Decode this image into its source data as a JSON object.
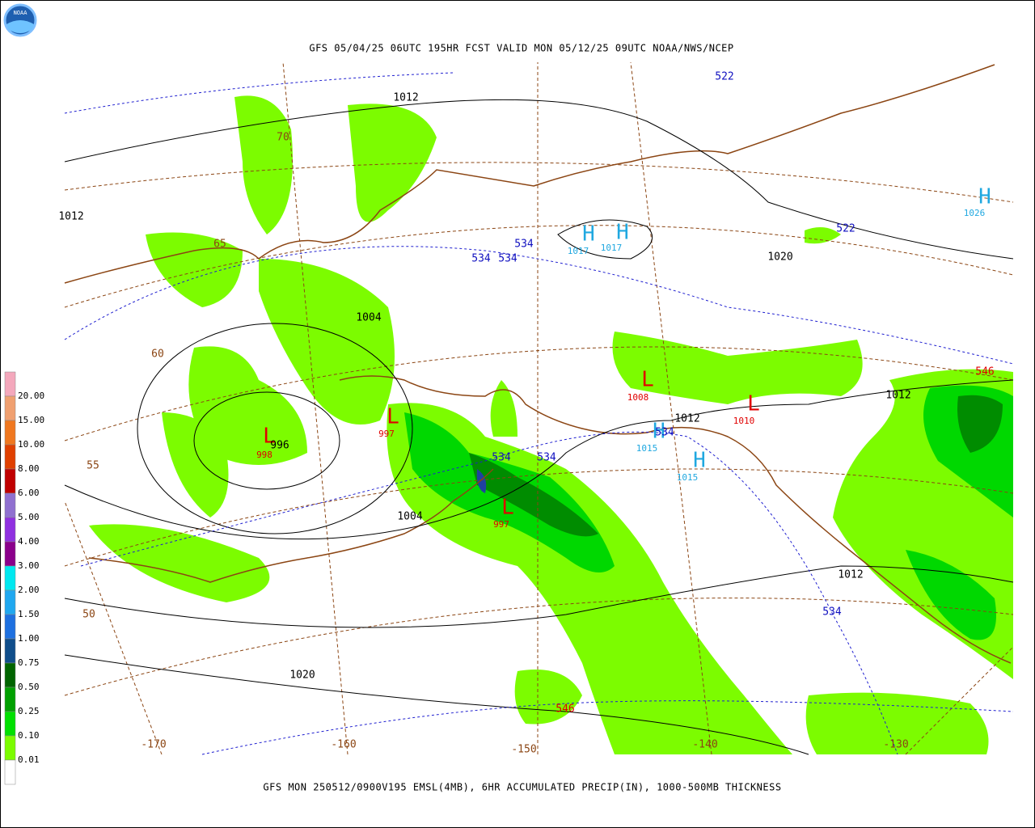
{
  "header": {
    "logo_text": "NOAA",
    "title": "GFS 05/04/25 06UTC 195HR FCST VALID MON 05/12/25 09UTC NOAA/NWS/NCEP"
  },
  "footer": {
    "caption": "GFS MON 250512/0900V195 EMSL(4MB), 6HR ACCUMULATED PRECIP(IN), 1000-500MB THICKNESS"
  },
  "legend": {
    "items": [
      {
        "label": "20.00",
        "color": "#f4a8bc"
      },
      {
        "label": "15.00",
        "color": "#f0a070"
      },
      {
        "label": "10.00",
        "color": "#f07820"
      },
      {
        "label": "8.00",
        "color": "#e04000"
      },
      {
        "label": "6.00",
        "color": "#c00000"
      },
      {
        "label": "5.00",
        "color": "#9070d0"
      },
      {
        "label": "4.00",
        "color": "#9030e0"
      },
      {
        "label": "3.00",
        "color": "#8b008b"
      },
      {
        "label": "2.00",
        "color": "#00e8f0"
      },
      {
        "label": "1.50",
        "color": "#20a8f0"
      },
      {
        "label": "1.00",
        "color": "#1e70e0"
      },
      {
        "label": "0.75",
        "color": "#104e8b"
      },
      {
        "label": "0.50",
        "color": "#006400"
      },
      {
        "label": "0.25",
        "color": "#00a000"
      },
      {
        "label": "0.10",
        "color": "#00e000"
      },
      {
        "label": "0.01",
        "color": "#7cfc00"
      }
    ],
    "bottom_color": "#ffffff"
  },
  "map": {
    "pressure_centers": [
      {
        "symbol": "L",
        "value": "998"
      },
      {
        "symbol": "L",
        "value": "997"
      },
      {
        "symbol": "L",
        "value": "997"
      },
      {
        "symbol": "L",
        "value": "1008"
      },
      {
        "symbol": "L",
        "value": "1010"
      },
      {
        "symbol": "H",
        "value": "1017"
      },
      {
        "symbol": "H",
        "value": "1017"
      },
      {
        "symbol": "H",
        "value": "1026"
      },
      {
        "symbol": "H",
        "value": "1015"
      },
      {
        "symbol": "H",
        "value": "1015"
      }
    ],
    "isobar_labels": [
      "1012",
      "1012",
      "1020",
      "1004",
      "996",
      "1004",
      "1012",
      "1012",
      "1012",
      "1020"
    ],
    "thickness_labels": [
      "522",
      "522",
      "534",
      "534",
      "534",
      "534",
      "534",
      "534",
      "534"
    ],
    "warm_thickness_labels": [
      "546",
      "546"
    ],
    "graticule_labels": [
      "70",
      "65",
      "60",
      "55",
      "50",
      "-170",
      "-160",
      "-150",
      "-140",
      "-130"
    ]
  }
}
